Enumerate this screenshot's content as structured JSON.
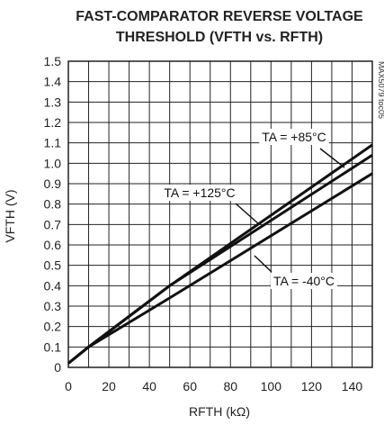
{
  "chart_data": {
    "type": "line",
    "title_line1": "FAST-COMPARATOR REVERSE VOLTAGE",
    "title_line2": "THRESHOLD (VFTH vs. RFTH)",
    "xlabel": "RFTH (kΩ)",
    "ylabel": "VFTH (V)",
    "side_label": "MAX5079 toc05",
    "xlim": [
      0,
      150
    ],
    "ylim": [
      0,
      1.5
    ],
    "grid": true,
    "x_ticks": [
      0,
      20,
      40,
      60,
      80,
      100,
      120,
      140
    ],
    "y_ticks": [
      0,
      0.1,
      0.2,
      0.3,
      0.4,
      0.5,
      0.6,
      0.7,
      0.8,
      0.9,
      1.0,
      1.1,
      1.2,
      1.3,
      1.4,
      1.5
    ],
    "x_tick_labels": [
      "0",
      "20",
      "40",
      "60",
      "80",
      "100",
      "120",
      "140"
    ],
    "y_tick_labels": [
      "0",
      "0.1",
      "0.2",
      "0.3",
      "0.4",
      "0.5",
      "0.6",
      "0.7",
      "0.8",
      "0.9",
      "1.0",
      "1.1",
      "1.2",
      "1.3",
      "1.4",
      "1.5"
    ],
    "series": [
      {
        "name": "TA = +85°C",
        "x": [
          0,
          10,
          50,
          150
        ],
        "y": [
          0.02,
          0.1,
          0.4,
          1.09
        ]
      },
      {
        "name": "TA = +125°C",
        "x": [
          0,
          10,
          50,
          150
        ],
        "y": [
          0.02,
          0.1,
          0.4,
          1.04
        ]
      },
      {
        "name": "TA = -40°C",
        "x": [
          0,
          10,
          50,
          150
        ],
        "y": [
          0.02,
          0.1,
          0.34,
          0.95
        ]
      }
    ],
    "annotations": [
      {
        "label": "TA = +85°C",
        "series": 0
      },
      {
        "label": "TA = +125°C",
        "series": 1
      },
      {
        "label": "TA = -40°C",
        "series": 2
      }
    ]
  }
}
